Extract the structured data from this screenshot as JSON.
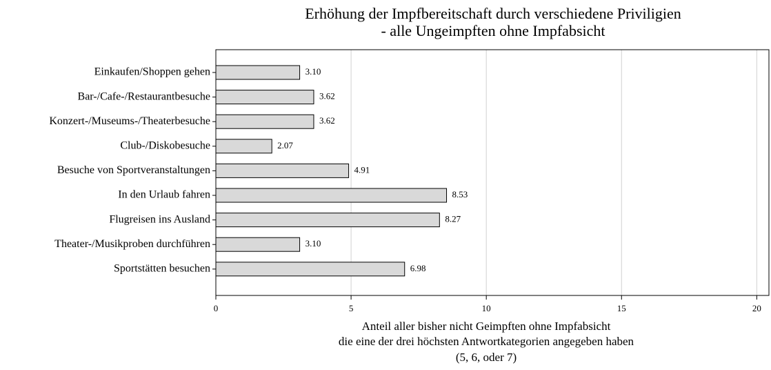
{
  "chart_data": {
    "type": "bar",
    "orientation": "horizontal",
    "title": [
      "Erhöhung der Impfbereitschaft durch verschiedene Priviligien",
      "- alle Ungeimpften ohne Impfabsicht"
    ],
    "xlabel": [
      "Anteil aller bisher nicht Geimpften ohne Impfabsicht",
      "die eine der drei höchsten Antwortkategorien angegeben haben",
      "(5, 6, oder 7)"
    ],
    "categories": [
      "Einkaufen/Shoppen gehen",
      "Bar-/Cafe-/Restaurantbesuche",
      "Konzert-/Museums-/Theaterbesuche",
      "Club-/Diskobesuche",
      "Besuche von Sportveranstaltungen",
      "In den Urlaub fahren",
      "Flugreisen ins Ausland",
      "Theater-/Musikproben durchführen",
      "Sportstätten besuchen"
    ],
    "values": [
      3.1,
      3.62,
      3.62,
      2.07,
      4.91,
      8.53,
      8.27,
      3.1,
      6.98
    ],
    "value_labels": [
      "3.10",
      "3.62",
      "3.62",
      "2.07",
      "4.91",
      "8.53",
      "8.27",
      "3.10",
      "6.98"
    ],
    "color": "#d9d9d9",
    "xlim": [
      0,
      20.45
    ],
    "xticks": [
      0,
      5,
      10,
      15,
      20
    ],
    "grid": true
  }
}
